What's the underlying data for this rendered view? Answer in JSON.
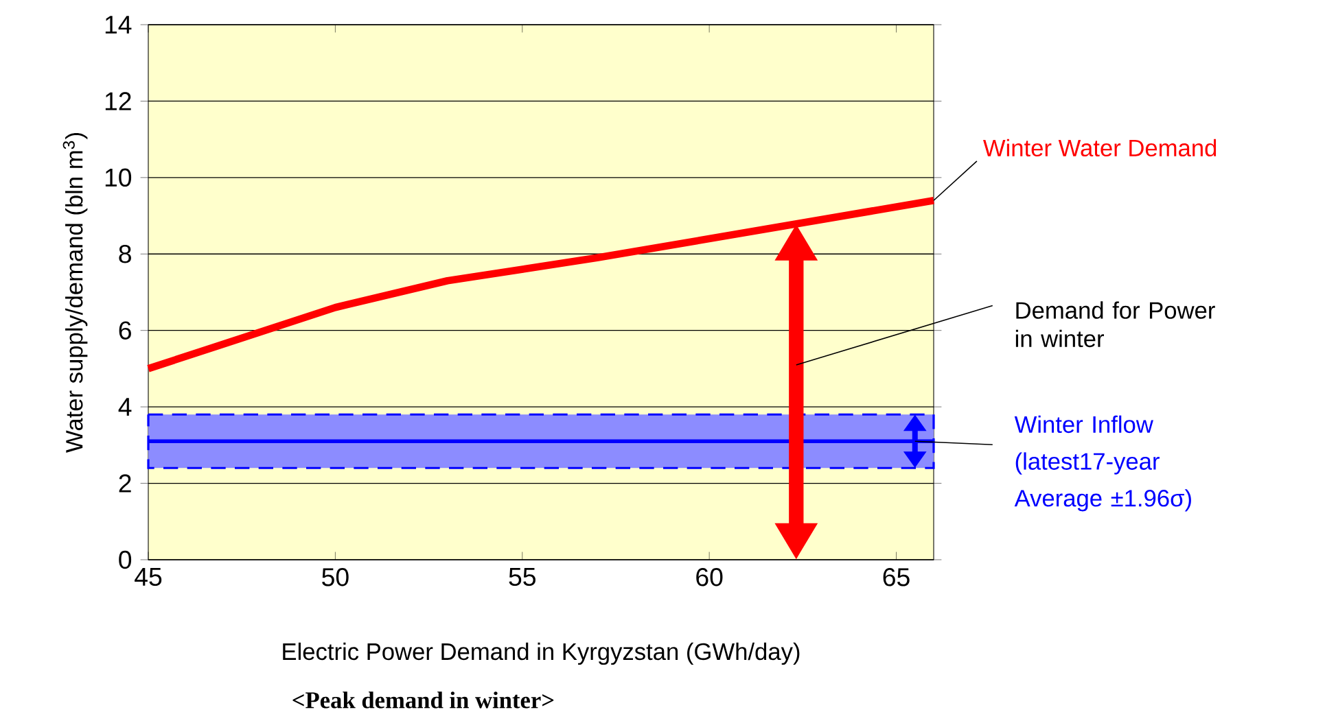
{
  "chart_data": {
    "type": "line",
    "xlabel": "Electric Power Demand in Kyrgyzstan (GWh/day)",
    "ylabel": "Water supply/demand (bln m$^{3}$)",
    "subtitle": "<Peak demand in winter>",
    "xlim": [
      45,
      66
    ],
    "ylim": [
      0,
      14
    ],
    "xticks": [
      45,
      50,
      55,
      60,
      65
    ],
    "yticks": [
      0,
      2,
      4,
      6,
      8,
      10,
      12,
      14
    ],
    "grid": "y",
    "series": [
      {
        "color": "#ff0000",
        "x": [
          45,
          50,
          53,
          57,
          66
        ],
        "values": [
          5.0,
          6.6,
          7.3,
          7.9,
          9.4
        ]
      },
      {
        "color": "#0000ff",
        "x": [
          45,
          66
        ],
        "values": [
          3.1,
          3.1
        ],
        "lower": [
          2.4,
          2.4
        ],
        "upper": [
          3.8,
          3.8
        ]
      }
    ],
    "annotations": [
      {
        "text": "Winter Water Demand",
        "x": 66,
        "y": 9.4
      },
      "Demand for Power in winter",
      {
        "text": "Winter Inflow (latest17-year Average ±1.96σ)",
        "x": 65.5,
        "y": 3.1
      }
    ]
  }
}
